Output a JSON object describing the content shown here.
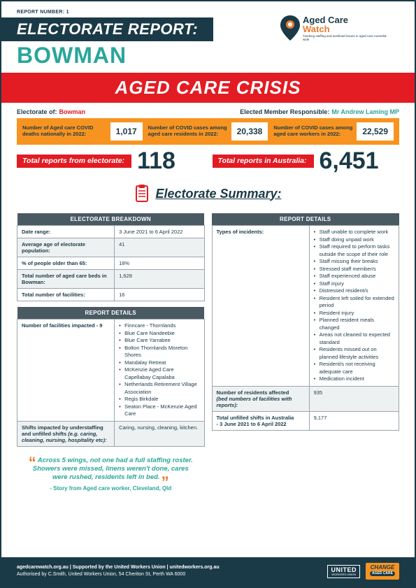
{
  "report_number_label": "REPORT NUMBER: 1",
  "title_bar": "ELECTORATE REPORT:",
  "electorate_name": "BOWMAN",
  "logo": {
    "line1": "Aged Care",
    "line2": "Watch",
    "tagline": "Tracking staffing and workload issues in aged care Australia-wide"
  },
  "crisis_banner": "AGED CARE CRISIS",
  "info": {
    "electorate_label": "Electorate of:",
    "electorate_value": "Bowman",
    "member_label": "Elected Member Responsible:",
    "member_value": "Mr Andrew Laming MP"
  },
  "orange": [
    {
      "label": "Number of Aged care COVID deaths nationally in 2022:",
      "value": "1,017"
    },
    {
      "label": "Number of COVID cases among aged care residents in 2022:",
      "value": "20,338"
    },
    {
      "label": "Number of COVID cases among aged care workers in 2022:",
      "value": "22,529"
    }
  ],
  "totals": {
    "electorate_label": "Total reports from electorate:",
    "electorate_value": "118",
    "australia_label": "Total reports in Australia:",
    "australia_value": "6,451"
  },
  "summary_title": "Electorate Summary:",
  "breakdown": {
    "header": "ELECTORATE BREAKDOWN",
    "rows": [
      {
        "label": "Date range:",
        "value": "3 June 2021 to 6 April 2022"
      },
      {
        "label": "Average age of electorate population:",
        "value": "41"
      },
      {
        "label": "% of people older than 65:",
        "value": "18%"
      },
      {
        "label": "Total number of aged care beds in Bowman:",
        "value": "1,628"
      },
      {
        "label": "Total number of facilities:",
        "value": "16"
      }
    ]
  },
  "report_left": {
    "header": "REPORT DETAILS",
    "facilities_label": "Number of facilities impacted - 9",
    "facilities": [
      "Finncare - Thornlands",
      "Blue Care Nandeebie",
      "Blue Care Yarrabee",
      "Bolton Thornlands Moreton Shores",
      "Mandalay Retreat",
      "McKenzie Aged Care Capellabay Capalaba",
      "Netherlands Retirement Village Association",
      "Regis Birkdale",
      "Seaton Place - McKenzie Aged Care"
    ],
    "shifts_label": "Shifts impacted by understaffing and unfilled shifts ",
    "shifts_label_em": "(e.g. caring, cleaning, nursing, hospitality etc):",
    "shifts_value": "Caring, nursing, cleaning, kitchen."
  },
  "report_right": {
    "header": "REPORT DETAILS",
    "incidents_label": "Types of incidents:",
    "incidents": [
      "Staff unable to complete work",
      "Staff doing unpaid work",
      "Staff required to perform tasks outside the scope of their role",
      "Staff missing their breaks",
      "Stressed staff member/s",
      "Staff experienced abuse",
      "Staff injury",
      "Distressed resident/s",
      "Resident left soiled for extended period",
      "Resident injury",
      "Planned resident meals changed",
      "Areas not cleaned to expected standard",
      "Residents missed out on planned lifestyle activities",
      "Resident/s not receiving adequate care",
      "Medication incident"
    ],
    "residents_label_l1": "Number of residents affected",
    "residents_label_l2": "(bed numbers of facilities with reports):",
    "residents_value": "935",
    "unfilled_label_l1": "Total unfilled shifts in Australia",
    "unfilled_label_l2": "- 3 June 2021 to 6 April 2022",
    "unfilled_value": "9,177"
  },
  "quote": {
    "text": "Across 5 wings, not one had a full staffing roster. Showers were missed, linens weren't done, cares were rushed, residents left in bed.",
    "attr": "- Story from Aged care worker, Cleveland, Qld"
  },
  "footer": {
    "line1": "agedcarewatch.org.au  |  Supported by the United Workers Union  |  unitedworkers.org.au",
    "line2": "Authorised by C.Smith, United Workers Union, 54 Cheriton St, Perth WA 6000",
    "united": "UNITED",
    "united_sub": "WORKERS UNION",
    "change": "CHANGE",
    "change_sub": "AGED CARE"
  },
  "colors": {
    "dark": "#1a3a47",
    "teal": "#2aa69a",
    "red": "#e31b23",
    "orange": "#f79421",
    "orange2": "#e97c2f"
  }
}
